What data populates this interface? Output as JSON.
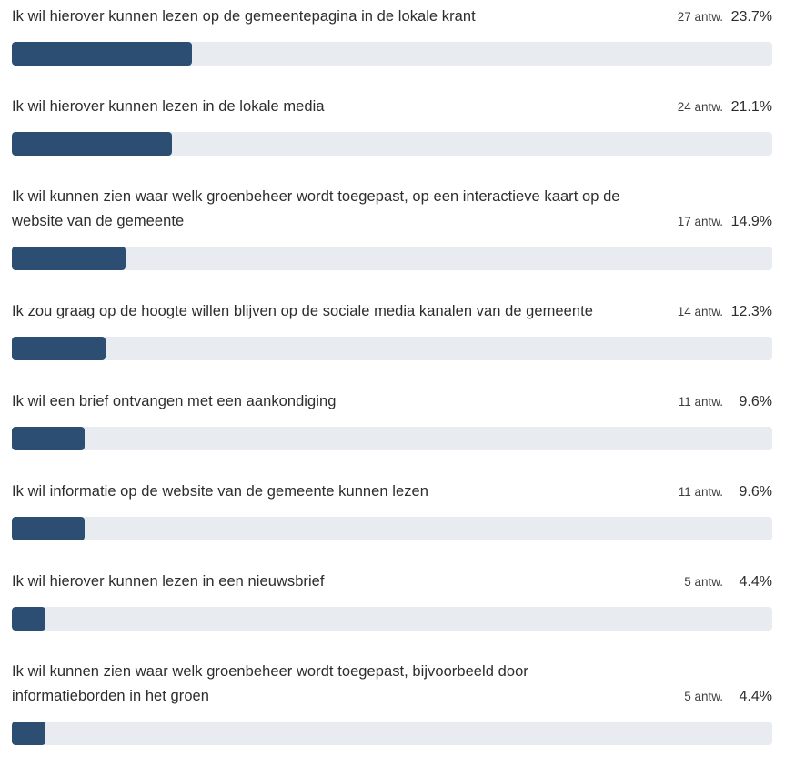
{
  "chart_data": {
    "type": "bar",
    "orientation": "horizontal",
    "xlim": [
      0,
      100
    ],
    "colors": {
      "bar": "#2c4e72",
      "track": "#e8ebf0",
      "text": "#2d2d2d"
    },
    "items": [
      {
        "label": "Ik wil hierover kunnen lezen op de gemeentepagina in de lokale krant",
        "count_text": "27 antw.",
        "percent_text": "23.7%",
        "count": 27,
        "percent": 23.7
      },
      {
        "label": "Ik wil hierover kunnen lezen in de lokale media",
        "count_text": "24 antw.",
        "percent_text": "21.1%",
        "count": 24,
        "percent": 21.1
      },
      {
        "label": "Ik wil kunnen zien waar welk groenbeheer wordt toegepast, op een interactieve kaart op de website van de gemeente",
        "count_text": "17 antw.",
        "percent_text": "14.9%",
        "count": 17,
        "percent": 14.9
      },
      {
        "label": "Ik zou graag op de hoogte willen blijven op de sociale media kanalen van de gemeente",
        "count_text": "14 antw.",
        "percent_text": "12.3%",
        "count": 14,
        "percent": 12.3
      },
      {
        "label": "Ik wil een brief ontvangen met een aankondiging",
        "count_text": "11 antw.",
        "percent_text": "9.6%",
        "count": 11,
        "percent": 9.6
      },
      {
        "label": "Ik wil informatie op de website van de gemeente kunnen lezen",
        "count_text": "11 antw.",
        "percent_text": "9.6%",
        "count": 11,
        "percent": 9.6
      },
      {
        "label": "Ik wil hierover kunnen lezen in een nieuwsbrief",
        "count_text": "5 antw.",
        "percent_text": "4.4%",
        "count": 5,
        "percent": 4.4
      },
      {
        "label": "Ik wil kunnen zien waar welk groenbeheer wordt toegepast, bijvoorbeeld door informatieborden in het groen",
        "count_text": "5 antw.",
        "percent_text": "4.4%",
        "count": 5,
        "percent": 4.4
      }
    ]
  }
}
